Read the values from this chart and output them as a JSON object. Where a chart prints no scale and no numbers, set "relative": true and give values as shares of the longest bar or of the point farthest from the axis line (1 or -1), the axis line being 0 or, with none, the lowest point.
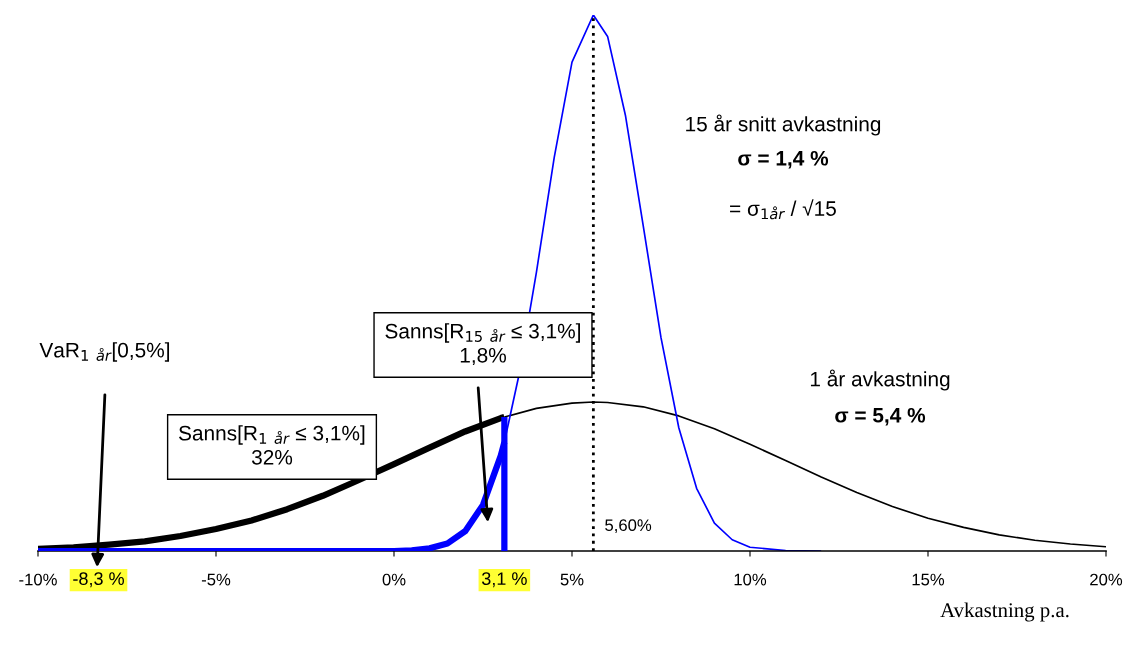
{
  "chart_data": {
    "type": "line",
    "relative": true,
    "xlabel": "Avkastning p.a.",
    "xlim": [
      -10,
      20
    ],
    "xticks": [
      {
        "value": -10,
        "label": "-10%"
      },
      {
        "value": -5,
        "label": "-5%"
      },
      {
        "value": 0,
        "label": "0%"
      },
      {
        "value": 5,
        "label": "5%"
      },
      {
        "value": 10,
        "label": "10%"
      },
      {
        "value": 15,
        "label": "15%"
      },
      {
        "value": 20,
        "label": "20%"
      }
    ],
    "grid": false,
    "legend": false,
    "marker": "none",
    "line_style": "solid",
    "series": [
      {
        "color": "#000000",
        "x": [
          -10,
          -9,
          -8,
          -7,
          -6,
          -5,
          -4,
          -3,
          -2,
          -1,
          0,
          1,
          2,
          3,
          3.1
        ],
        "values": [
          0.004,
          0.007,
          0.012,
          0.018,
          0.028,
          0.041,
          0.057,
          0.078,
          0.103,
          0.132,
          0.162,
          0.193,
          0.223,
          0.248,
          0.25
        ]
      },
      {
        "color": "#000000",
        "x": [
          3.1,
          4,
          5,
          5.6,
          6,
          7,
          8,
          9,
          10,
          11,
          12,
          13,
          14,
          15,
          16,
          17,
          18,
          19,
          20
        ],
        "values": [
          0.25,
          0.266,
          0.276,
          0.278,
          0.277,
          0.269,
          0.252,
          0.228,
          0.199,
          0.169,
          0.138,
          0.109,
          0.083,
          0.061,
          0.044,
          0.03,
          0.02,
          0.013,
          0.008
        ]
      },
      {
        "color": "#0000ff",
        "x": [
          -10,
          -5,
          0,
          0.5,
          1,
          1.5,
          2,
          2.5,
          3,
          3.1
        ],
        "values": [
          0,
          0,
          0,
          0.001,
          0.005,
          0.014,
          0.037,
          0.086,
          0.178,
          0.203
        ]
      },
      {
        "color": "#0000ff",
        "x": [
          3.1,
          3.5,
          4,
          4.5,
          5,
          5.6,
          6,
          6.5,
          7,
          7.5,
          8,
          8.5,
          9,
          9.5,
          10,
          11,
          12
        ],
        "values": [
          0.203,
          0.325,
          0.52,
          0.734,
          0.912,
          1,
          0.96,
          0.813,
          0.607,
          0.398,
          0.23,
          0.117,
          0.052,
          0.021,
          0.007,
          0.001,
          0
        ]
      },
      {
        "color": "#0000ff",
        "x": [
          3.1,
          3.1
        ],
        "values": [
          0,
          0.25
        ]
      }
    ],
    "ref_lines": [
      {
        "axis": "x",
        "value": 5.6,
        "label": "5,60%",
        "line_style": "dotted",
        "color": "#000000"
      }
    ],
    "annotations": [
      "15 år snitt avkastning",
      "σ = 1,4 %",
      "= σ$_{1år}$ / √15",
      "1 år avkastning",
      "σ = 5,4 %",
      "Sanns[R$_{15}$ $_{år}$ ≤ 3,1%]\n1,8%",
      "Sanns[R$_{1}$ $_{år}$ ≤ 3,1%]\n32%",
      "VaR$_{1}$ $_{år}$[0,5%]",
      {
        "text": "-8,3 %",
        "x": -8.3,
        "y": 0
      },
      {
        "text": "3,1 %",
        "x": 3.1,
        "y": 0
      }
    ]
  }
}
